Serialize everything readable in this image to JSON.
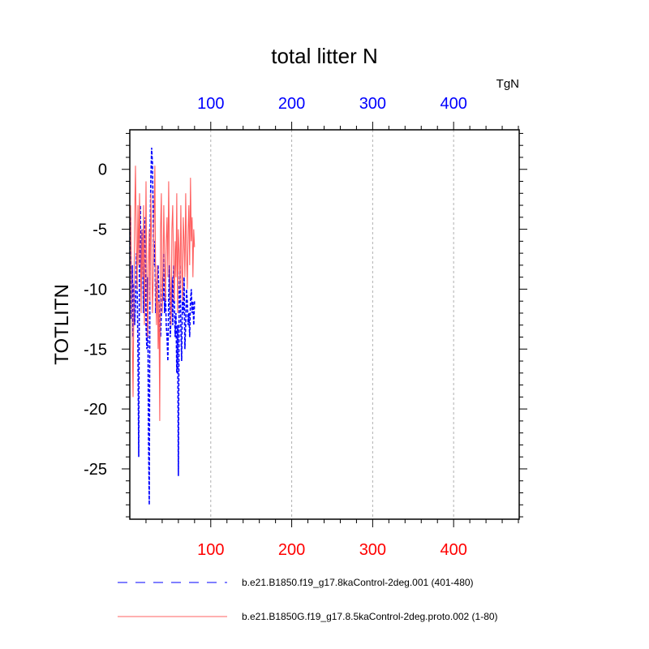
{
  "chart_data": {
    "type": "line",
    "title": "total litter N",
    "xlabel": "",
    "ylabel": "TOTLITN",
    "units": "TgN",
    "xlim": [
      0,
      481
    ],
    "ylim": [
      -29.2,
      3.3
    ],
    "xticks": [
      100,
      200,
      300,
      400
    ],
    "xtick_labels": [
      "100",
      "200",
      "300",
      "400"
    ],
    "yticks": [
      0,
      -5,
      -10,
      -15,
      -20,
      -25
    ],
    "ytick_labels": [
      "0",
      "-5",
      "-10",
      "-15",
      "-20",
      "-25"
    ],
    "grid": "vertical dashed at major x ticks",
    "legend_position": "bottom",
    "colors": {
      "top_axis_labels": "#0000ff",
      "bottom_axis_labels": "#ff0000"
    },
    "series": [
      {
        "name": "b.e21.B1850.f19_g17.8kaControl-2deg.001 (401-480)",
        "color": "#0000ff",
        "dash": "dashed",
        "x": [
          1,
          2,
          3,
          4,
          5,
          6,
          7,
          8,
          9,
          10,
          11,
          12,
          13,
          14,
          15,
          16,
          17,
          18,
          19,
          20,
          21,
          22,
          23,
          24,
          25,
          26,
          27,
          28,
          29,
          30,
          31,
          32,
          33,
          34,
          35,
          36,
          37,
          38,
          39,
          40,
          41,
          42,
          43,
          44,
          45,
          46,
          47,
          48,
          49,
          50,
          51,
          52,
          53,
          54,
          55,
          56,
          57,
          58,
          59,
          60,
          61,
          62,
          63,
          64,
          65,
          66,
          67,
          68,
          69,
          70,
          71,
          72,
          73,
          74,
          75,
          76,
          77,
          78,
          79,
          80
        ],
        "y": [
          -4,
          -12.5,
          -8,
          -14,
          -9.5,
          -13,
          -11,
          -7,
          -9.5,
          -15,
          -24,
          -6,
          -3,
          -10,
          -5,
          -8,
          -12,
          -6,
          -4,
          -13,
          -15,
          -9,
          -22,
          -28,
          -6,
          -1,
          1.8,
          0.5,
          -4,
          -8,
          -6,
          -12,
          -10,
          -9,
          -8,
          -11,
          -13,
          -14,
          -12,
          -9,
          -11,
          -7,
          -12,
          -10,
          -13,
          -14,
          -16,
          -11,
          -8,
          -14,
          -12,
          -9,
          -13,
          -8,
          -11,
          -14,
          -12,
          -17,
          -13,
          -25.6,
          -10,
          -8,
          -13,
          -16,
          -11,
          -12,
          -9,
          -15,
          -13,
          -10,
          -11,
          -13,
          -12,
          -14,
          -11,
          -10,
          -12,
          -11,
          -13,
          -11
        ]
      },
      {
        "name": "b.e21.B1850G.f19_g17.8.5kaControl-2deg.proto.002 (1-80)",
        "color": "#ff6060",
        "dash": "solid",
        "x": [
          1,
          2,
          3,
          4,
          5,
          6,
          7,
          8,
          9,
          10,
          11,
          12,
          13,
          14,
          15,
          16,
          17,
          18,
          19,
          20,
          21,
          22,
          23,
          24,
          25,
          26,
          27,
          28,
          29,
          30,
          31,
          32,
          33,
          34,
          35,
          36,
          37,
          38,
          39,
          40,
          41,
          42,
          43,
          44,
          45,
          46,
          47,
          48,
          49,
          50,
          51,
          52,
          53,
          54,
          55,
          56,
          57,
          58,
          59,
          60,
          61,
          62,
          63,
          64,
          65,
          66,
          67,
          68,
          69,
          70,
          71,
          72,
          73,
          74,
          75,
          76,
          77,
          78,
          79,
          80
        ],
        "y": [
          -3,
          -9,
          -14,
          -19,
          -11,
          -4,
          0.3,
          -6,
          -10,
          -3,
          -8,
          -2,
          -7,
          -12,
          -5,
          -9,
          -3,
          -13,
          -8,
          -1,
          -10,
          -14,
          -8,
          -5,
          -11,
          -2,
          -6,
          -12,
          -9,
          -4,
          0.3,
          -10,
          -13,
          -8,
          -15,
          -11,
          -21,
          -5,
          -2,
          -12,
          -9,
          -3,
          -8,
          -11,
          -6,
          -4,
          -9,
          -1,
          -7,
          -10,
          -13,
          -5,
          -3,
          -8,
          -11,
          -6,
          -9,
          -2,
          -12,
          -5,
          -7,
          -10,
          -3,
          -8,
          -11,
          -4,
          -6,
          -9,
          -2,
          -7,
          -10,
          -5,
          -3,
          -8,
          -0.7,
          -6,
          -4,
          -9,
          -5,
          -6.5
        ]
      }
    ]
  }
}
